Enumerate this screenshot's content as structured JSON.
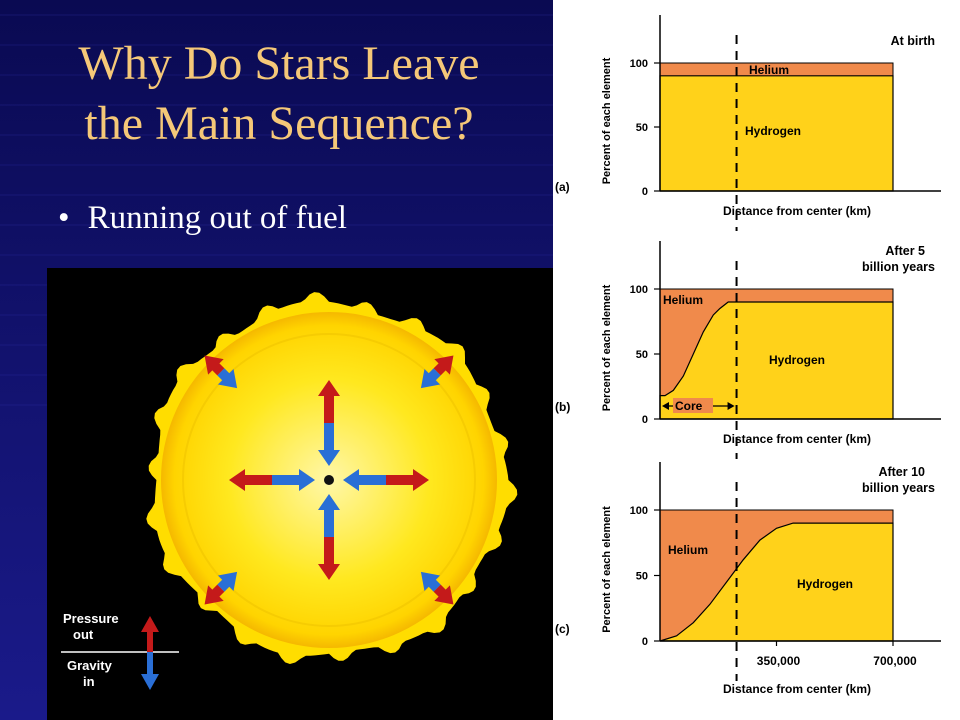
{
  "slide": {
    "title_line1": "Why Do Stars Leave",
    "title_line2": "the Main Sequence?",
    "bullet": "Running out of fuel"
  },
  "sun_diagram": {
    "legend_pressure": [
      "Pressure",
      "out"
    ],
    "legend_gravity": [
      "Gravity",
      "in"
    ],
    "colors": {
      "pressure": "#c41a1a",
      "gravity": "#2a6fd6",
      "sun": "#ffe21a"
    }
  },
  "chart_data": [
    {
      "type": "area",
      "panel": "(a)",
      "note": "At birth",
      "ylabel": "Percent of each element",
      "xlabel": "Distance from center (km)",
      "y_ticks": [
        "0",
        "50",
        "100"
      ],
      "x_ticks": [],
      "regions": {
        "helium_label": "Helium",
        "hydrogen_label": "Hydrogen"
      },
      "x_max": 700000,
      "ylim": [
        0,
        100
      ],
      "core_boundary_x": 230000,
      "helium_fraction": {
        "x": [
          0,
          700000
        ],
        "y": [
          100,
          100
        ]
      },
      "hydrogen_fraction": {
        "x": [
          0,
          700000
        ],
        "y": [
          90,
          90
        ]
      }
    },
    {
      "type": "area",
      "panel": "(b)",
      "note": [
        "After 5",
        "billion years"
      ],
      "ylabel": "Percent of each element",
      "xlabel": "Distance from center (km)",
      "y_ticks": [
        "0",
        "50",
        "100"
      ],
      "x_ticks": [],
      "regions": {
        "helium_label": "Helium",
        "hydrogen_label": "Hydrogen",
        "core_label": "Core"
      },
      "x_max": 700000,
      "ylim": [
        0,
        100
      ],
      "core_boundary_x": 230000,
      "hydrogen_fraction": {
        "x": [
          0,
          15000,
          40000,
          70000,
          100000,
          130000,
          160000,
          180000,
          205000,
          700000
        ],
        "y": [
          18,
          18,
          22,
          33,
          50,
          67,
          80,
          85,
          90,
          90
        ]
      }
    },
    {
      "type": "area",
      "panel": "(c)",
      "note": [
        "After 10",
        "billion years"
      ],
      "ylabel": "Percent of each element",
      "xlabel": "Distance from center (km)",
      "y_ticks": [
        "0",
        "50",
        "100"
      ],
      "x_ticks": [
        "350,000",
        "700,000"
      ],
      "regions": {
        "helium_label": "Helium",
        "hydrogen_label": "Hydrogen"
      },
      "x_max": 700000,
      "ylim": [
        0,
        100
      ],
      "core_boundary_x": 230000,
      "hydrogen_fraction": {
        "x": [
          0,
          50000,
          100000,
          150000,
          200000,
          250000,
          300000,
          350000,
          400000,
          700000
        ],
        "y": [
          0,
          4,
          14,
          28,
          45,
          62,
          77,
          86,
          90,
          90
        ]
      }
    }
  ]
}
